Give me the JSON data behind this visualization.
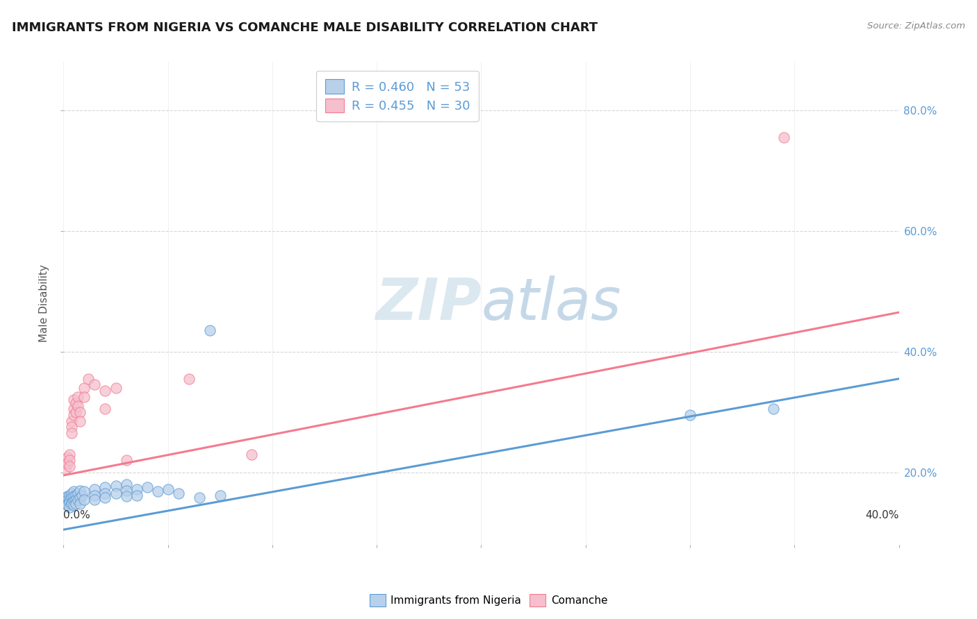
{
  "title": "IMMIGRANTS FROM NIGERIA VS COMANCHE MALE DISABILITY CORRELATION CHART",
  "source": "Source: ZipAtlas.com",
  "ylabel": "Male Disability",
  "legend_1_label": "R = 0.460   N = 53",
  "legend_2_label": "R = 0.455   N = 30",
  "legend_1_facecolor": "#b8d0ea",
  "legend_2_facecolor": "#f5bfce",
  "blue_color": "#5b9bd5",
  "pink_color": "#f47a8e",
  "xlim": [
    0.0,
    0.4
  ],
  "ylim": [
    0.08,
    0.88
  ],
  "yticks": [
    0.2,
    0.4,
    0.6,
    0.8
  ],
  "ytick_labels": [
    "20.0%",
    "40.0%",
    "60.0%",
    "80.0%"
  ],
  "xticks": [
    0.0,
    0.05,
    0.1,
    0.15,
    0.2,
    0.25,
    0.3,
    0.35,
    0.4
  ],
  "background_color": "#ffffff",
  "grid_color": "#cccccc",
  "blue_line_x": [
    0.0,
    0.4
  ],
  "blue_line_y": [
    0.105,
    0.355
  ],
  "pink_line_x": [
    0.0,
    0.4
  ],
  "pink_line_y": [
    0.195,
    0.465
  ],
  "blue_scatter": [
    [
      0.0005,
      0.155
    ],
    [
      0.001,
      0.158
    ],
    [
      0.001,
      0.152
    ],
    [
      0.001,
      0.148
    ],
    [
      0.002,
      0.16
    ],
    [
      0.002,
      0.155
    ],
    [
      0.002,
      0.148
    ],
    [
      0.002,
      0.145
    ],
    [
      0.003,
      0.162
    ],
    [
      0.003,
      0.155
    ],
    [
      0.003,
      0.15
    ],
    [
      0.003,
      0.142
    ],
    [
      0.004,
      0.165
    ],
    [
      0.004,
      0.158
    ],
    [
      0.004,
      0.15
    ],
    [
      0.004,
      0.148
    ],
    [
      0.005,
      0.168
    ],
    [
      0.005,
      0.16
    ],
    [
      0.005,
      0.152
    ],
    [
      0.005,
      0.145
    ],
    [
      0.006,
      0.162
    ],
    [
      0.006,
      0.155
    ],
    [
      0.006,
      0.148
    ],
    [
      0.007,
      0.165
    ],
    [
      0.007,
      0.155
    ],
    [
      0.008,
      0.17
    ],
    [
      0.008,
      0.158
    ],
    [
      0.008,
      0.148
    ],
    [
      0.009,
      0.162
    ],
    [
      0.01,
      0.168
    ],
    [
      0.01,
      0.155
    ],
    [
      0.015,
      0.172
    ],
    [
      0.015,
      0.162
    ],
    [
      0.015,
      0.155
    ],
    [
      0.02,
      0.175
    ],
    [
      0.02,
      0.165
    ],
    [
      0.02,
      0.158
    ],
    [
      0.025,
      0.178
    ],
    [
      0.025,
      0.165
    ],
    [
      0.03,
      0.18
    ],
    [
      0.03,
      0.17
    ],
    [
      0.03,
      0.16
    ],
    [
      0.035,
      0.172
    ],
    [
      0.035,
      0.162
    ],
    [
      0.04,
      0.175
    ],
    [
      0.045,
      0.168
    ],
    [
      0.05,
      0.172
    ],
    [
      0.055,
      0.165
    ],
    [
      0.065,
      0.158
    ],
    [
      0.075,
      0.162
    ],
    [
      0.07,
      0.435
    ],
    [
      0.3,
      0.295
    ],
    [
      0.34,
      0.305
    ]
  ],
  "pink_scatter": [
    [
      0.001,
      0.215
    ],
    [
      0.001,
      0.205
    ],
    [
      0.002,
      0.225
    ],
    [
      0.002,
      0.215
    ],
    [
      0.003,
      0.23
    ],
    [
      0.003,
      0.22
    ],
    [
      0.003,
      0.21
    ],
    [
      0.004,
      0.285
    ],
    [
      0.004,
      0.275
    ],
    [
      0.004,
      0.265
    ],
    [
      0.005,
      0.32
    ],
    [
      0.005,
      0.305
    ],
    [
      0.005,
      0.295
    ],
    [
      0.006,
      0.315
    ],
    [
      0.006,
      0.3
    ],
    [
      0.007,
      0.325
    ],
    [
      0.007,
      0.31
    ],
    [
      0.008,
      0.3
    ],
    [
      0.008,
      0.285
    ],
    [
      0.01,
      0.34
    ],
    [
      0.01,
      0.325
    ],
    [
      0.012,
      0.355
    ],
    [
      0.015,
      0.345
    ],
    [
      0.02,
      0.335
    ],
    [
      0.02,
      0.305
    ],
    [
      0.025,
      0.34
    ],
    [
      0.03,
      0.22
    ],
    [
      0.06,
      0.355
    ],
    [
      0.09,
      0.23
    ],
    [
      0.345,
      0.755
    ]
  ]
}
